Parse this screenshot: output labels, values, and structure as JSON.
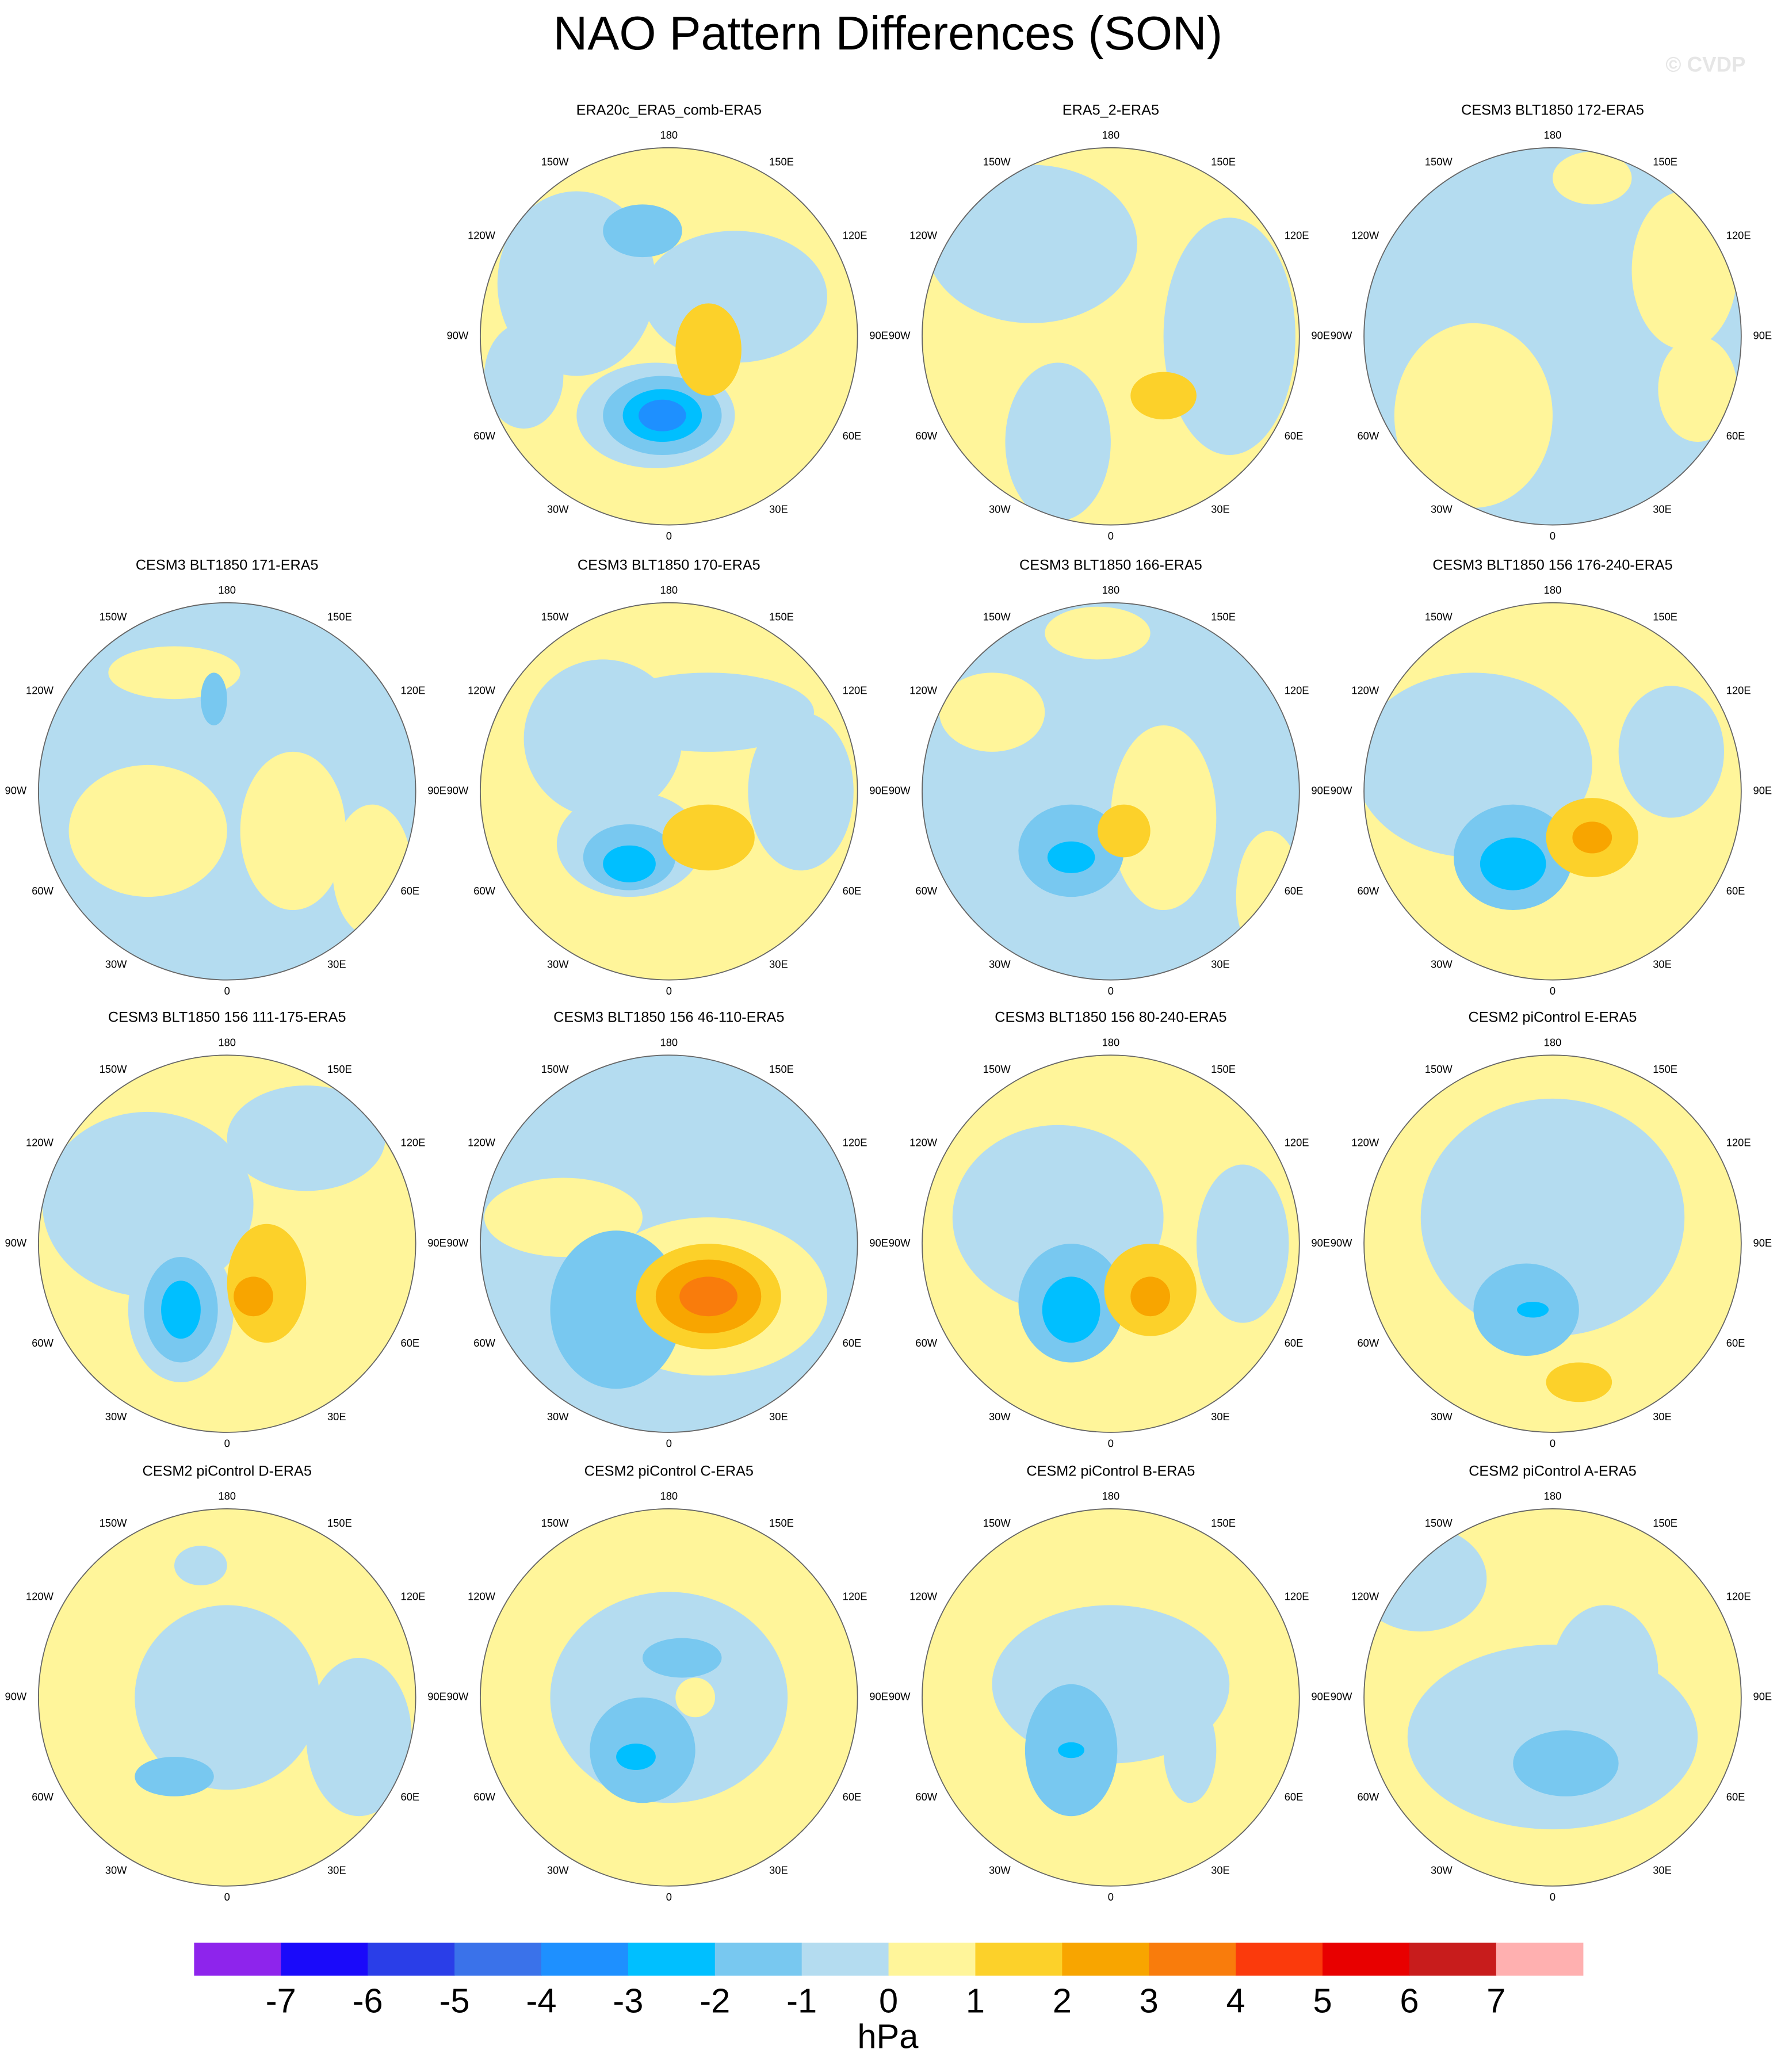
{
  "header": {
    "title": "NAO Pattern Differences (SON)",
    "watermark": "© CVDP"
  },
  "panels": [
    {
      "title": "ERA20c_ERA5_comb-ERA5"
    },
    {
      "title": "ERA5_2-ERA5"
    },
    {
      "title": "CESM3 BLT1850 172-ERA5"
    },
    {
      "title": "CESM3 BLT1850 171-ERA5"
    },
    {
      "title": "CESM3 BLT1850 170-ERA5"
    },
    {
      "title": "CESM3 BLT1850 166-ERA5"
    },
    {
      "title": "CESM3 BLT1850 156 176-240-ERA5"
    },
    {
      "title": "CESM3 BLT1850 156 111-175-ERA5"
    },
    {
      "title": "CESM3 BLT1850 156 46-110-ERA5"
    },
    {
      "title": "CESM3 BLT1850 156 80-240-ERA5"
    },
    {
      "title": "CESM2 piControl E-ERA5"
    },
    {
      "title": "CESM2 piControl D-ERA5"
    },
    {
      "title": "CESM2 piControl C-ERA5"
    },
    {
      "title": "CESM2 piControl B-ERA5"
    },
    {
      "title": "CESM2 piControl A-ERA5"
    }
  ],
  "lon_labels": [
    "0",
    "30E",
    "60E",
    "90E",
    "120E",
    "150E",
    "180",
    "150W",
    "120W",
    "90W",
    "60W",
    "30W"
  ],
  "colorbar": {
    "colors": [
      "#8e24ec",
      "#1a0afa",
      "#2a3ee8",
      "#3a72ea",
      "#1e90ff",
      "#00bfff",
      "#78c8f0",
      "#b4dcf0",
      "#fff59a",
      "#fcd12a",
      "#f8a500",
      "#f97c0c",
      "#fb3a0c",
      "#e80000",
      "#c81c1c",
      "#ffb0b0"
    ],
    "ticks": [
      -7,
      -6,
      -5,
      -4,
      -3,
      -2,
      -1,
      0,
      1,
      2,
      3,
      4,
      5,
      6,
      7
    ],
    "label": "hPa"
  }
}
